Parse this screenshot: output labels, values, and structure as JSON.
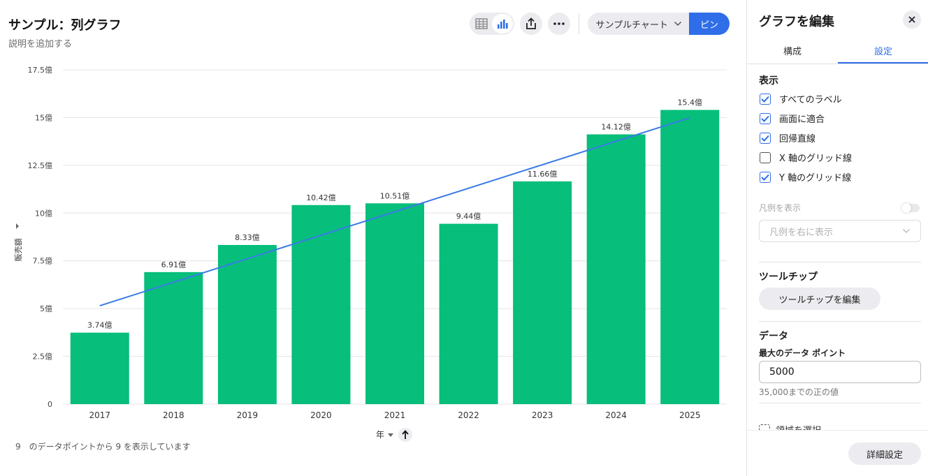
{
  "header": {
    "title": "サンプル：列グラフ",
    "subtitle": "説明を追加する",
    "dropdown_label": "サンプルチャート",
    "pin_label": "ピン"
  },
  "footer_note": "9　のデータポイントから 9 を表示しています",
  "colors": {
    "bar": "#07be7b",
    "trend": "#3b7be6",
    "accent": "#2f6ee8"
  },
  "icons": [
    "table-icon",
    "bar-chart-icon",
    "share-icon",
    "more-icon",
    "chevron-down-icon",
    "close-icon",
    "sort-arrow-up-icon"
  ],
  "chart_data": {
    "type": "bar",
    "categories": [
      "2017",
      "2018",
      "2019",
      "2020",
      "2021",
      "2022",
      "2023",
      "2024",
      "2025"
    ],
    "values": [
      3.74,
      6.91,
      8.33,
      10.42,
      10.51,
      9.44,
      11.66,
      14.12,
      15.4
    ],
    "data_labels": [
      "3.74億",
      "6.91億",
      "8.33億",
      "10.42億",
      "10.51億",
      "9.44億",
      "11.66億",
      "14.12億",
      "15.4億"
    ],
    "y_ticks": [
      "0",
      "2.5億",
      "5億",
      "7.5億",
      "10億",
      "12.5億",
      "15億",
      "17.5億"
    ],
    "y_tick_values": [
      0,
      2.5,
      5,
      7.5,
      10,
      12.5,
      15,
      17.5
    ],
    "ylim": [
      0,
      17.5
    ],
    "ylabel": "販売額",
    "xlabel": "年",
    "regression_line": {
      "start": 5.15,
      "end": 14.99
    },
    "grid": {
      "x": false,
      "y": true
    },
    "legend": false
  },
  "panel": {
    "title": "グラフを編集",
    "tabs": [
      "構成",
      "設定"
    ],
    "display_section": "表示",
    "checkboxes": [
      {
        "label": "すべてのラベル",
        "checked": true
      },
      {
        "label": "画面に適合",
        "checked": true
      },
      {
        "label": "回帰直線",
        "checked": true
      },
      {
        "label": "X 軸のグリッド線",
        "checked": false
      },
      {
        "label": "Y 軸のグリッド線",
        "checked": true
      }
    ],
    "legend_toggle_label": "凡例を表示",
    "legend_position": "凡例を右に表示",
    "tooltip_section": "ツールチップ",
    "tooltip_button": "ツールチップを編集",
    "data_section": "データ",
    "max_points_label": "最大のデータ ポイント",
    "max_points_value": "5000",
    "max_points_hint": "35,000までの正の値",
    "region_select": "領域を選択",
    "advanced_button": "詳細設定"
  }
}
